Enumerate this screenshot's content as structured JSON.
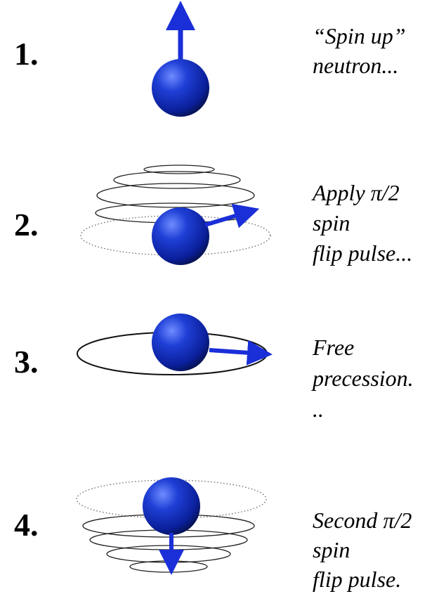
{
  "steps": [
    {
      "number": "1.",
      "lines": [
        "“Spin up”",
        "neutron..."
      ]
    },
    {
      "number": "2.",
      "lines": [
        "Apply π/2",
        "spin",
        "flip pulse..."
      ]
    },
    {
      "number": "3.",
      "lines": [
        "Free",
        "precession.",
        ".."
      ]
    },
    {
      "number": "4.",
      "lines": [
        "Second π/2",
        "spin",
        "flip pulse."
      ]
    }
  ]
}
